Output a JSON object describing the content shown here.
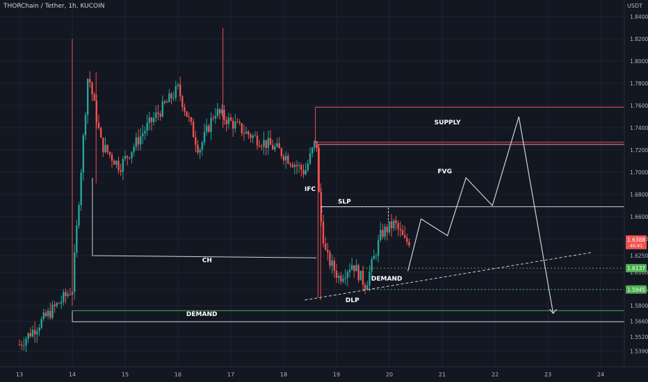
{
  "header": {
    "symbol_title": "THORChain / Tether, 1h, KUCOIN",
    "currency": "USDT"
  },
  "colors": {
    "background": "#131722",
    "up": "#26a69a",
    "down": "#ef5350",
    "grid": "#1f2330",
    "text": "#b2b5be",
    "white_line": "#d1d4dc",
    "supply_line": "#ef5350",
    "fvg_line": "#f48fb1",
    "demand_line": "#4caf50"
  },
  "chart_data": {
    "type": "candlestick",
    "title": "THORChain / Tether, 1h, KUCOIN",
    "y_axis_unit": "USDT",
    "ylim": [
      1.525,
      1.855
    ],
    "y_ticks": [
      "1.8400",
      "1.8200",
      "1.8000",
      "1.7800",
      "1.7600",
      "1.7400",
      "1.7200",
      "1.7000",
      "1.6800",
      "1.6600",
      "1.6400",
      "1.6250",
      "1.6100",
      "1.5945",
      "1.5800",
      "1.5660",
      "1.5520",
      "1.5390"
    ],
    "x_ticks": [
      "13",
      "14",
      "15",
      "16",
      "17",
      "18",
      "19",
      "20",
      "21",
      "22",
      "23",
      "24"
    ],
    "price_labels": [
      {
        "id": "current",
        "value": 1.6388,
        "text": "1.6388",
        "subtext": "40:41",
        "color": "#ef5350"
      },
      {
        "id": "level_upper",
        "value": 1.6137,
        "text": "1.6137",
        "color": "#4caf50"
      },
      {
        "id": "level_lower",
        "value": 1.5945,
        "text": "1.5945",
        "color": "#4caf50"
      }
    ],
    "anchors": [
      {
        "x": 0.0,
        "price": 1.545
      },
      {
        "x": 1.0,
        "price": 1.595
      },
      {
        "x": 1.3,
        "price": 1.79
      },
      {
        "x": 1.55,
        "price": 1.725
      },
      {
        "x": 1.9,
        "price": 1.705
      },
      {
        "x": 2.4,
        "price": 1.74
      },
      {
        "x": 3.0,
        "price": 1.775
      },
      {
        "x": 3.4,
        "price": 1.72
      },
      {
        "x": 3.7,
        "price": 1.755
      },
      {
        "x": 4.3,
        "price": 1.735
      },
      {
        "x": 4.9,
        "price": 1.72
      },
      {
        "x": 5.4,
        "price": 1.7
      },
      {
        "x": 5.62,
        "price": 1.73
      },
      {
        "x": 5.68,
        "price": 1.665
      },
      {
        "x": 5.8,
        "price": 1.625
      },
      {
        "x": 6.05,
        "price": 1.605
      },
      {
        "x": 6.3,
        "price": 1.618
      },
      {
        "x": 6.55,
        "price": 1.598
      },
      {
        "x": 6.85,
        "price": 1.645
      },
      {
        "x": 7.1,
        "price": 1.654
      },
      {
        "x": 7.3,
        "price": 1.637
      },
      {
        "x": 7.4,
        "price": 1.6388
      }
    ],
    "zones": [
      {
        "id": "supply-top",
        "price": 1.7585,
        "x_start": 5.6,
        "color": "#ef5350"
      },
      {
        "id": "supply-bottom",
        "price": 1.727,
        "x_start": 5.6,
        "color": "#ef5350"
      },
      {
        "id": "fvg-top",
        "price": 1.725,
        "x_start": 5.65,
        "color": "#f48fb1"
      },
      {
        "id": "slp-line",
        "price": 1.669,
        "x_start": 5.7,
        "color": "#d1d4dc"
      },
      {
        "id": "demand-top",
        "price": 1.5755,
        "x_start": 1.0,
        "color": "#4caf50"
      },
      {
        "id": "demand-bottom",
        "price": 1.5655,
        "x_start": 1.0,
        "color": "#d1d4dc"
      }
    ],
    "annotations": [
      {
        "id": "supply",
        "text": "SUPPLY",
        "x": 8.1,
        "price": 1.743
      },
      {
        "id": "fvg",
        "text": "FVG",
        "x": 8.05,
        "price": 1.699
      },
      {
        "id": "ifc",
        "text": "IFC",
        "x": 5.5,
        "price": 1.683
      },
      {
        "id": "slp",
        "text": "SLP",
        "x": 6.15,
        "price": 1.672
      },
      {
        "id": "ch",
        "text": "CH",
        "x": 3.55,
        "price": 1.619
      },
      {
        "id": "demand-minor",
        "text": "DEMAND",
        "x": 6.95,
        "price": 1.6025
      },
      {
        "id": "dlp",
        "text": "DLP",
        "x": 6.3,
        "price": 1.583
      },
      {
        "id": "demand-major",
        "text": "DEMAND",
        "x": 3.45,
        "price": 1.5705
      }
    ]
  }
}
